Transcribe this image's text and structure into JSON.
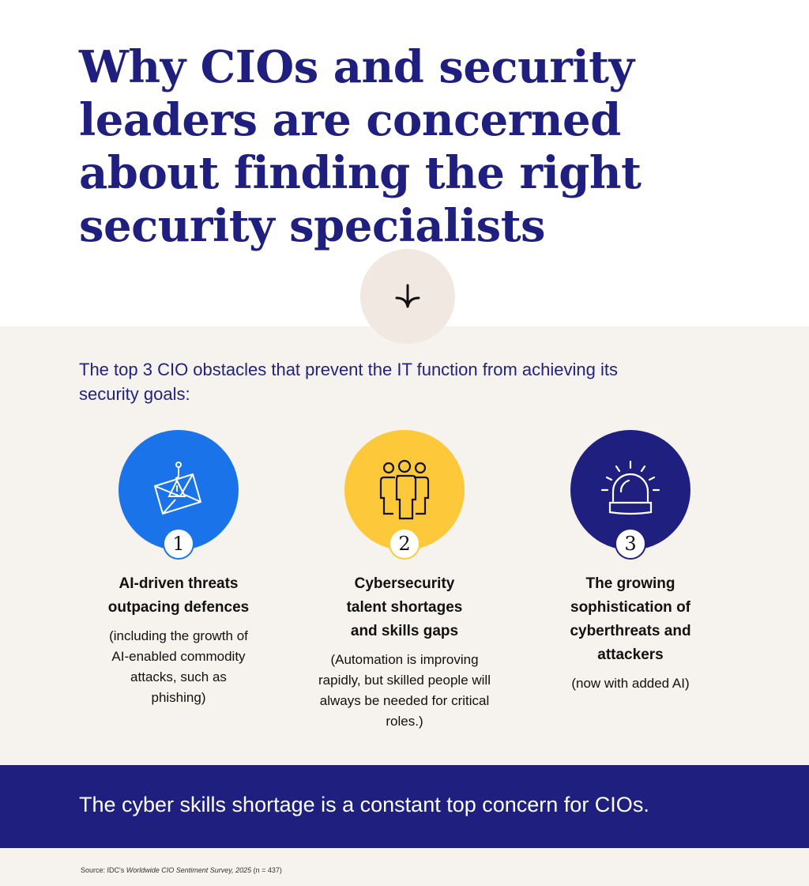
{
  "title": "Why CIOs and security leaders are concerned about finding the right security specialists",
  "subtitle": "The top 3 CIO obstacles that prevent the IT function from achieving its security goals:",
  "obstacles": [
    {
      "number": "1",
      "icon": "phishing-email-icon",
      "color": "#1a73e8",
      "heading": "AI-driven threats outpacing defences",
      "description": "(including the growth of AI-enabled commodity attacks, such as phishing)"
    },
    {
      "number": "2",
      "icon": "people-group-icon",
      "color": "#fdc93a",
      "heading": "Cybersecurity talent shortages and skills gaps",
      "description": "(Automation is improving rapidly, but skilled people will always be needed for critical roles.)"
    },
    {
      "number": "3",
      "icon": "alarm-siren-icon",
      "color": "#1e1f7e",
      "heading": "The growing sophistication of cyberthreats and attackers",
      "description": "(now with added AI)"
    }
  ],
  "banner": "The cyber skills shortage is a constant top concern for CIOs.",
  "source": {
    "prefix": "Source: IDC's ",
    "survey": "Worldwide CIO Sentiment Survey, 2025",
    "suffix": " (n = 437)"
  }
}
